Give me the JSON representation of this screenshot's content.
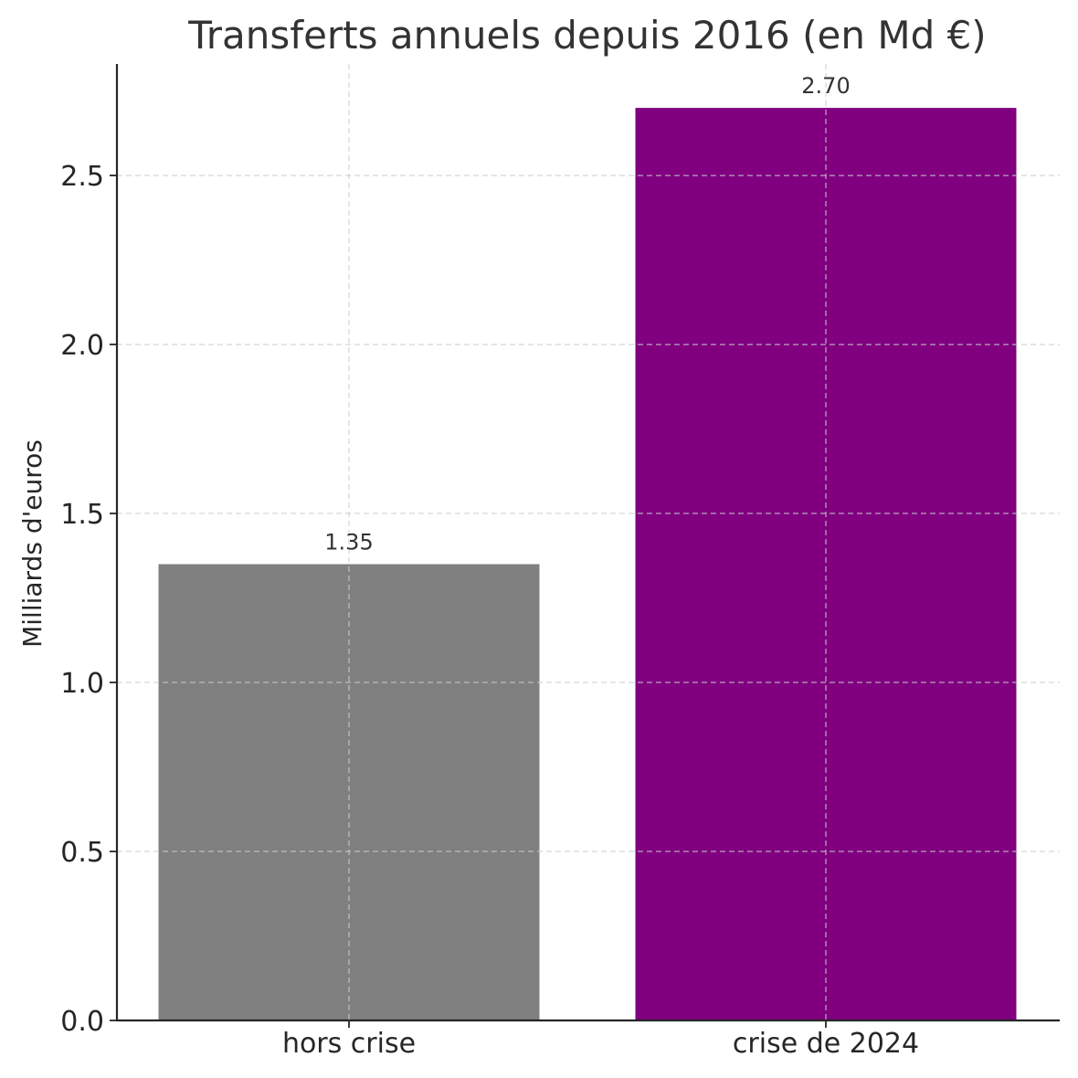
{
  "chart_data": {
    "type": "bar",
    "title": "Transferts annuels depuis 2016 (en Md €)",
    "xlabel": "",
    "ylabel": "Milliards d'euros",
    "categories": [
      "hors crise",
      "crise de 2024"
    ],
    "values": [
      1.35,
      2.7
    ],
    "data_labels": [
      "1.35",
      "2.70"
    ],
    "colors": [
      "#808080",
      "#800080"
    ],
    "ylim": [
      0,
      2.83
    ],
    "yticks": [
      0.0,
      0.5,
      1.0,
      1.5,
      2.0,
      2.5
    ],
    "ytick_labels": [
      "0.0",
      "0.5",
      "1.0",
      "1.5",
      "2.0",
      "2.5"
    ],
    "grid": true
  }
}
